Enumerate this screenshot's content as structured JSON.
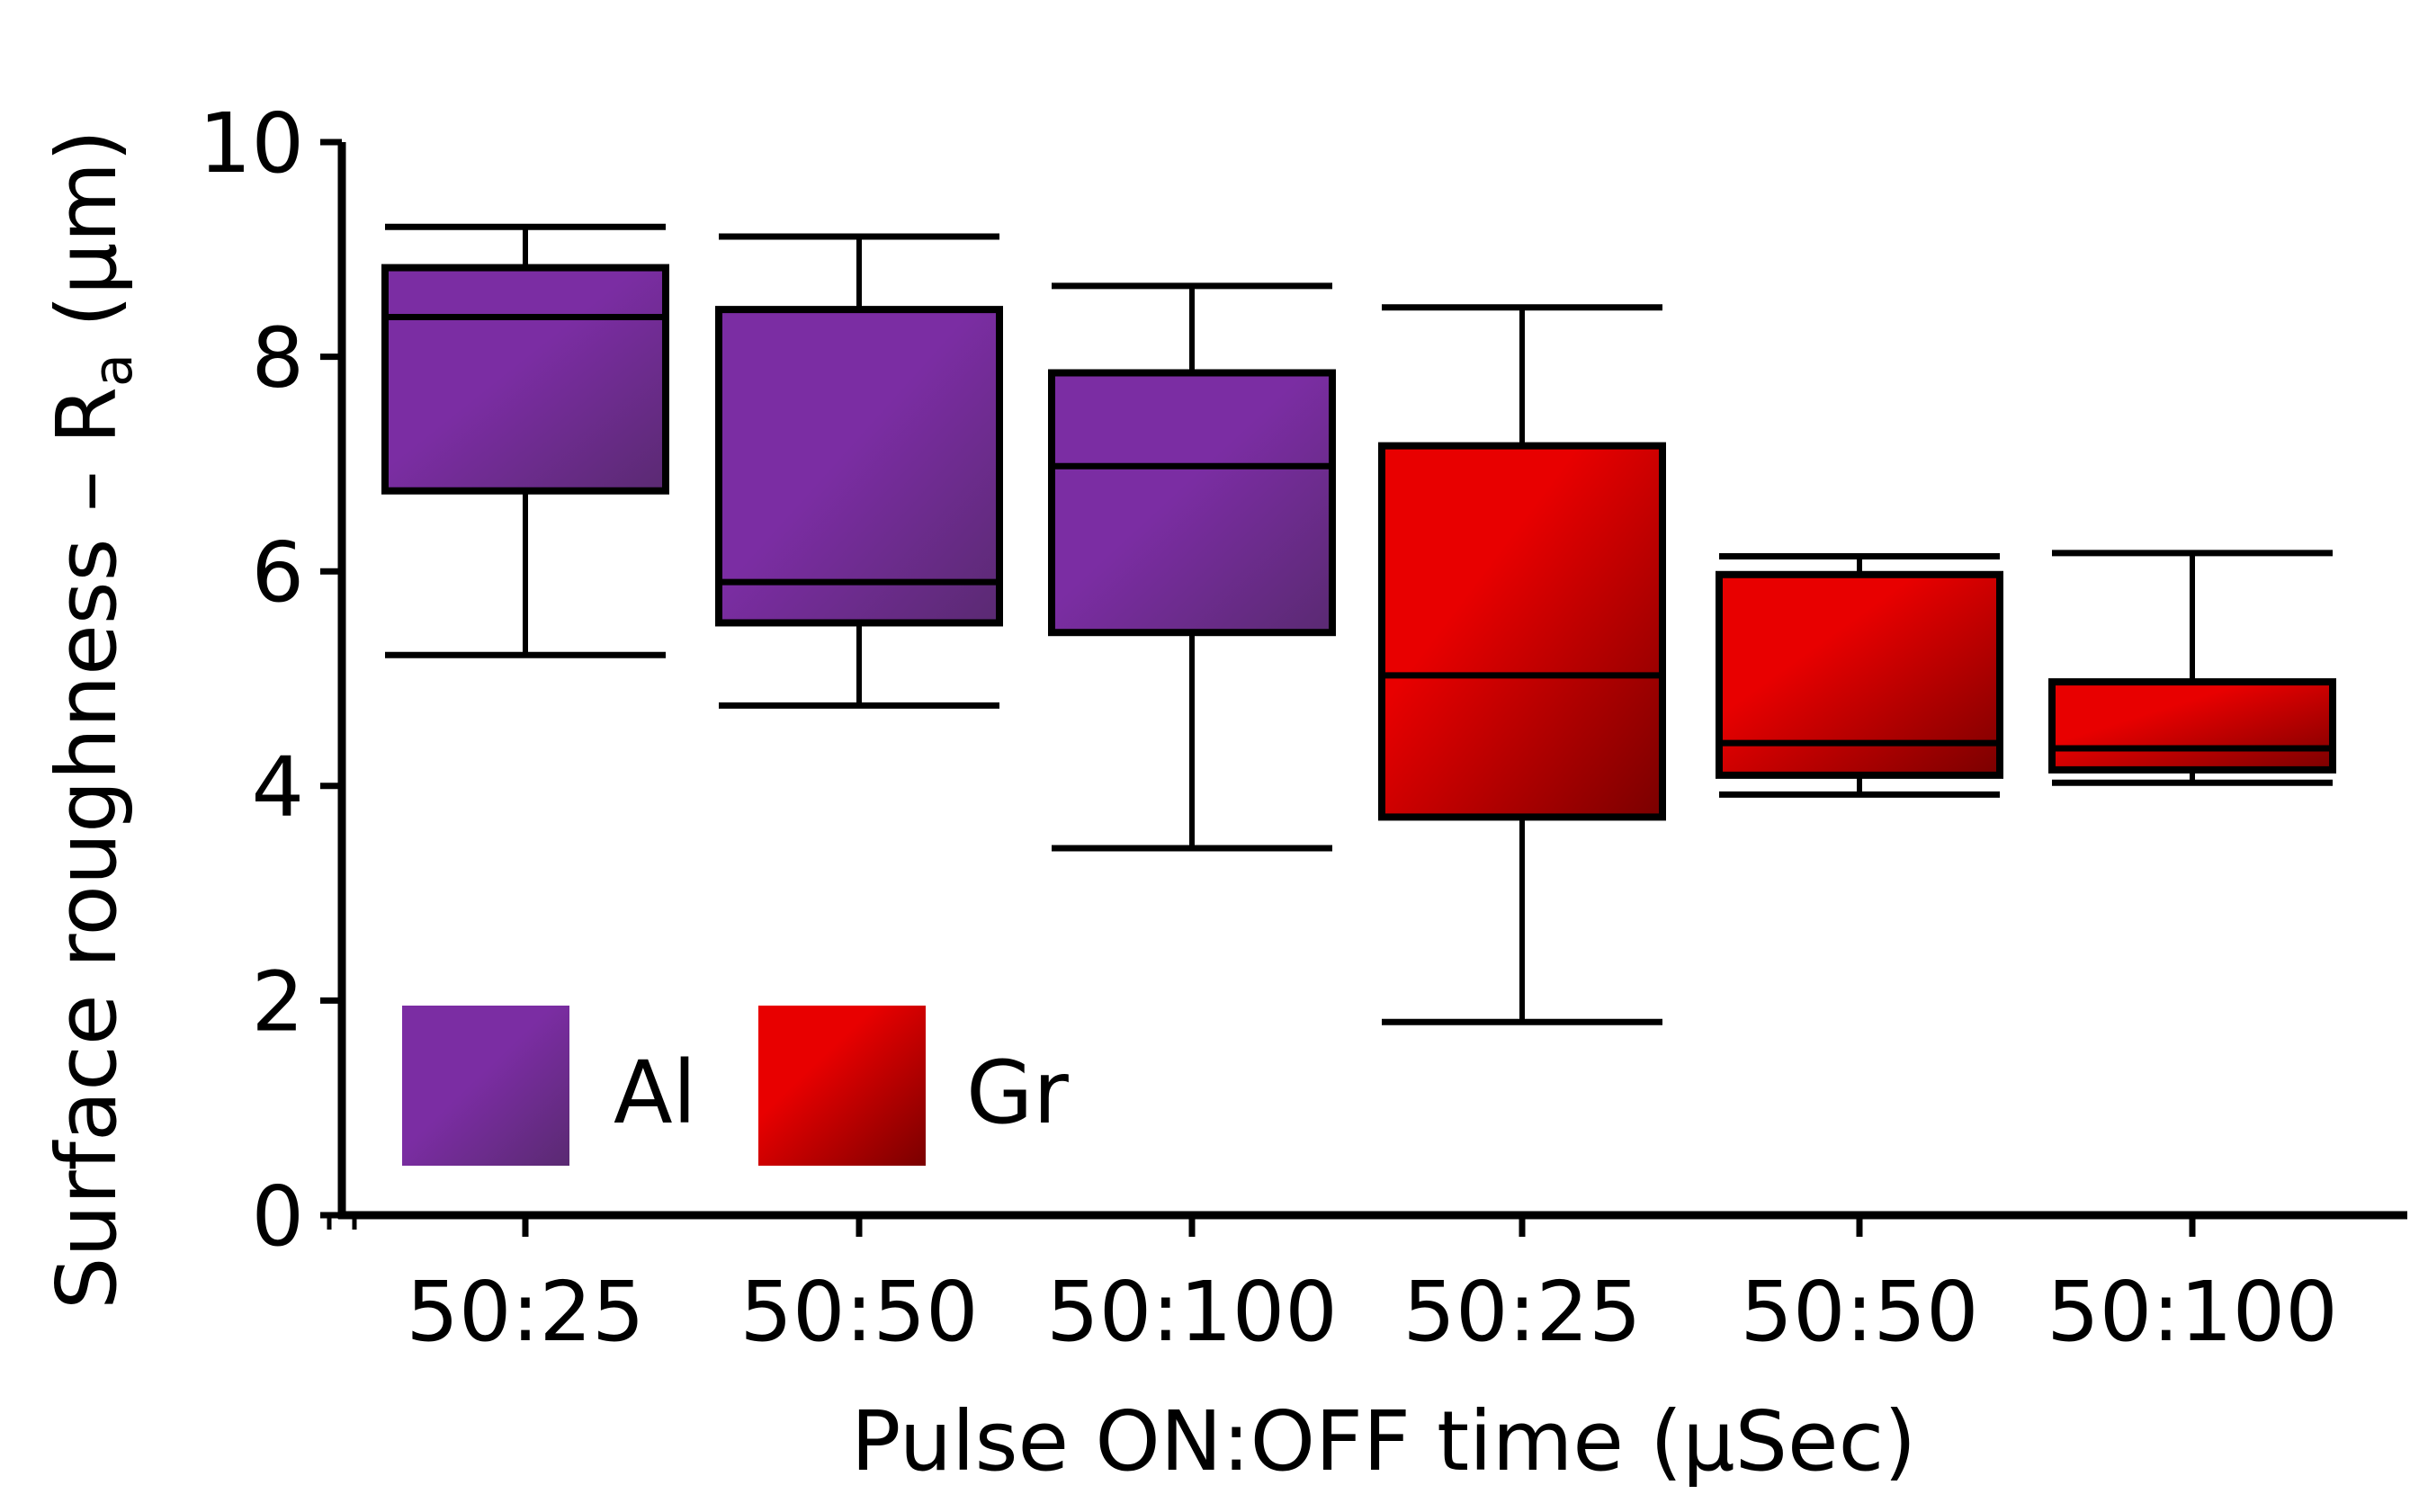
{
  "chart_data": {
    "type": "box",
    "title": "",
    "xlabel": "Pulse ON:OFF time (μSec)",
    "ylabel_main": "Surface roughness – R",
    "ylabel_sub": "a",
    "ylabel_unit": " (μm)",
    "ylim": [
      0,
      10
    ],
    "yticks": [
      "0",
      "2",
      "4",
      "6",
      "8",
      "10"
    ],
    "grid": false,
    "legend_placement": "bottom-left",
    "categories": [
      "50:25",
      "50:50",
      "50:100",
      "50:25",
      "50:50",
      "50:100"
    ],
    "series": [
      {
        "name": "Al",
        "color": "#7B2DA3",
        "color_dark": "#5E2A7E",
        "boxes": [
          {
            "category": "50:25",
            "min": 5.22,
            "q1": 6.75,
            "median": 8.37,
            "q3": 8.83,
            "max": 9.21
          },
          {
            "category": "50:50",
            "min": 4.75,
            "q1": 5.52,
            "median": 5.9,
            "q3": 8.44,
            "max": 9.12
          },
          {
            "category": "50:100",
            "min": 3.42,
            "q1": 5.43,
            "median": 6.98,
            "q3": 7.85,
            "max": 8.66
          }
        ]
      },
      {
        "name": "Gr",
        "color": "#E00000",
        "color_dark": "#8B0000",
        "boxes": [
          {
            "category": "50:25",
            "min": 1.8,
            "q1": 3.71,
            "median": 5.03,
            "q3": 7.17,
            "max": 8.46
          },
          {
            "category": "50:50",
            "min": 3.92,
            "q1": 4.1,
            "median": 4.4,
            "q3": 5.97,
            "max": 6.14
          },
          {
            "category": "50:100",
            "min": 4.03,
            "q1": 4.15,
            "median": 4.35,
            "q3": 4.97,
            "max": 6.17
          }
        ]
      }
    ]
  }
}
